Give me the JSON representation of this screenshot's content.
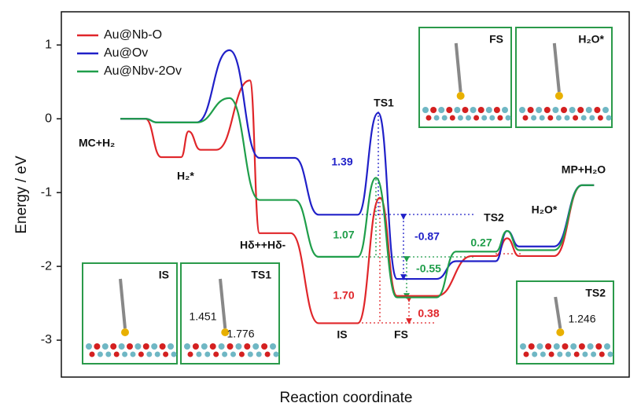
{
  "chart_data": {
    "type": "line",
    "ylabel": "Energy / eV",
    "xlabel": "Reaction coordinate",
    "xlim": [
      0,
      100
    ],
    "ylim": [
      -3.5,
      1.45
    ],
    "yticks": [
      -3,
      -2,
      -1,
      0,
      1
    ],
    "legend": "upper left",
    "series": [
      {
        "name": "Au@Nb-O",
        "color": "#e0262a",
        "x": [
          10.4,
          14.8,
          17.6,
          21.1,
          22.4,
          24.5,
          27.3,
          33.2,
          34.9,
          40.4,
          45.3,
          52.2,
          56.1,
          59.1,
          66.1,
          72.3,
          76.5,
          78.5,
          80.6,
          86.8,
          91.7,
          93.8
        ],
        "values": [
          0,
          0,
          -0.52,
          -0.52,
          -0.17,
          -0.42,
          -0.42,
          0.52,
          -1.55,
          -1.55,
          -2.77,
          -2.77,
          -1.07,
          -2.4,
          -2.4,
          -1.86,
          -1.86,
          -1.62,
          -1.86,
          -1.86,
          -0.9,
          -0.9
        ]
      },
      {
        "name": "Au@Ov",
        "color": "#2020c8",
        "x": [
          10.4,
          14.8,
          16.9,
          23.8,
          29.6,
          34.9,
          41.1,
          45.3,
          52.2,
          55.8,
          59.1,
          66.1,
          69.5,
          76.5,
          78.5,
          80.6,
          86.8,
          91.7,
          93.8
        ],
        "values": [
          0,
          0,
          -0.05,
          -0.05,
          0.93,
          -0.53,
          -0.53,
          -1.3,
          -1.3,
          0.08,
          -2.17,
          -2.17,
          -1.93,
          -1.93,
          -1.52,
          -1.73,
          -1.73,
          -0.9,
          -0.9
        ]
      },
      {
        "name": "Au@Nbv-2Ov",
        "color": "#1f9e4a",
        "x": [
          10.4,
          14.8,
          16.9,
          23.8,
          29.6,
          34.9,
          41.1,
          45.3,
          52.2,
          55.4,
          59.1,
          66.1,
          69.5,
          76.5,
          78.5,
          80.6,
          86.8,
          91.7,
          93.8
        ],
        "values": [
          0,
          0,
          -0.05,
          -0.05,
          0.28,
          -1.1,
          -1.1,
          -1.87,
          -1.87,
          -0.8,
          -2.42,
          -2.42,
          -1.8,
          -1.8,
          -1.52,
          -1.78,
          -1.78,
          -0.9,
          -0.9
        ]
      }
    ],
    "annotations": [
      {
        "text": "MC+H₂",
        "color": "#111111"
      },
      {
        "text": "H₂*",
        "color": "#111111"
      },
      {
        "text": "Hδ++Hδ-",
        "color": "#111111"
      },
      {
        "text": "TS1",
        "color": "#111111"
      },
      {
        "text": "1.39",
        "color": "#2020c8"
      },
      {
        "text": "1.07",
        "color": "#1f9e4a"
      },
      {
        "text": "1.70",
        "color": "#e0262a"
      },
      {
        "text": "-0.87",
        "color": "#2020c8"
      },
      {
        "text": "-0.55",
        "color": "#1f9e4a"
      },
      {
        "text": "0.38",
        "color": "#e0262a"
      },
      {
        "text": "IS",
        "color": "#111111"
      },
      {
        "text": "FS",
        "color": "#111111"
      },
      {
        "text": "TS2",
        "color": "#111111"
      },
      {
        "text": "0.27",
        "color": "#1f9e4a"
      },
      {
        "text": "H₂O*",
        "color": "#111111"
      },
      {
        "text": "MP+H₂O",
        "color": "#111111"
      }
    ],
    "insets": [
      {
        "title": "IS",
        "notes": []
      },
      {
        "title": "TS1",
        "notes": [
          "1.451",
          "1.776"
        ]
      },
      {
        "title": "FS",
        "notes": []
      },
      {
        "title": "H₂O*",
        "notes": []
      },
      {
        "title": "TS2",
        "notes": [
          "1.246"
        ]
      }
    ]
  }
}
